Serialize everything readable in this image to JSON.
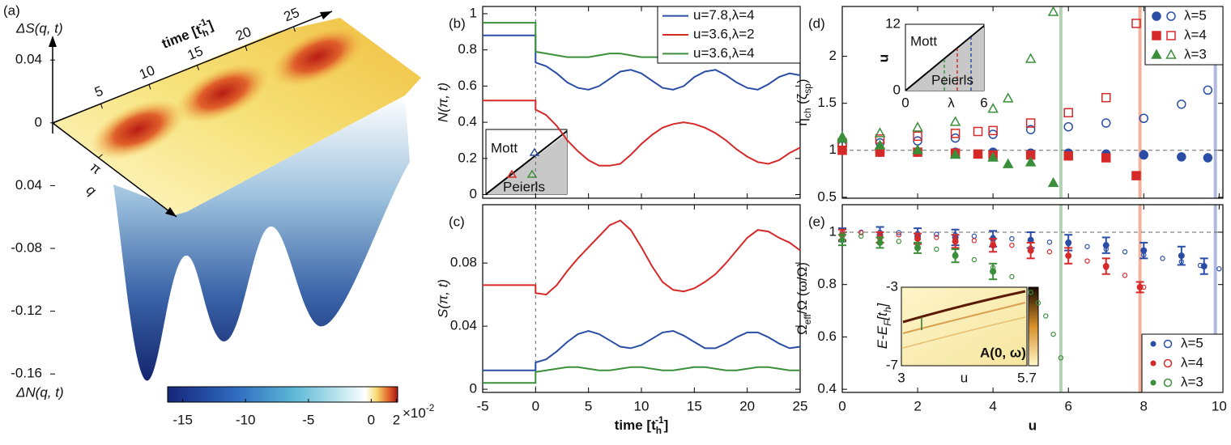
{
  "chart_data": [
    {
      "type": "surface",
      "panel": "(a)",
      "zlabel_top": "ΔS(q, t)",
      "zlabel_bottom": "ΔN(q, t)",
      "xlabel": [
        "time [t",
        "h",
        "-1",
        "]"
      ],
      "ylabel": "q",
      "xlim": [
        0,
        29
      ],
      "xticks": [
        5,
        10,
        15,
        20,
        25
      ],
      "ylim": [
        0,
        8.5
      ],
      "yticks": [
        {
          "value": 3.1416,
          "label": "π"
        }
      ],
      "zlim": [
        -0.18,
        0.07
      ],
      "zticks": [
        0.04,
        0,
        {
          "value": -0.04,
          "label": "0.04"
        },
        -0.08,
        -0.12,
        -0.16
      ],
      "colorbar": {
        "lim": [
          -16.2,
          2.1
        ],
        "ticks": [
          -15,
          -10,
          -5,
          0,
          2
        ],
        "scale": [
          "×10",
          "-2"
        ]
      }
    },
    {
      "type": "line",
      "panel": "(b)",
      "ylabel": "N(π, t)",
      "x": [
        -5,
        -4,
        -3,
        -2,
        -1,
        0,
        0,
        1,
        2,
        3,
        4,
        5,
        6,
        7,
        8,
        9,
        10,
        11,
        12,
        13,
        14,
        15,
        16,
        17,
        18,
        19,
        20,
        21,
        22,
        23,
        24,
        25
      ],
      "series": [
        {
          "name": "u=7.8,λ=4",
          "color": "#2a4ea6",
          "values": [
            0.88,
            0.88,
            0.88,
            0.88,
            0.88,
            0.88,
            0.73,
            0.71,
            0.67,
            0.62,
            0.59,
            0.58,
            0.6,
            0.64,
            0.68,
            0.69,
            0.67,
            0.63,
            0.59,
            0.58,
            0.6,
            0.65,
            0.68,
            0.69,
            0.66,
            0.62,
            0.59,
            0.58,
            0.61,
            0.65,
            0.67,
            0.66
          ]
        },
        {
          "name": "u=3.6,λ=2",
          "color": "#d62a2a",
          "values": [
            0.52,
            0.52,
            0.52,
            0.52,
            0.52,
            0.52,
            0.47,
            0.44,
            0.38,
            0.3,
            0.24,
            0.19,
            0.16,
            0.16,
            0.17,
            0.22,
            0.28,
            0.33,
            0.37,
            0.39,
            0.4,
            0.39,
            0.37,
            0.34,
            0.3,
            0.25,
            0.21,
            0.18,
            0.17,
            0.19,
            0.23,
            0.26
          ]
        },
        {
          "name": "u=3.6,λ=4",
          "color": "#3b8f3b",
          "values": [
            0.95,
            0.95,
            0.95,
            0.95,
            0.95,
            0.95,
            0.79,
            0.78,
            0.77,
            0.76,
            0.76,
            0.76,
            0.77,
            0.78,
            0.78,
            0.77,
            0.76,
            0.76,
            0.76,
            0.77,
            0.78,
            0.78,
            0.77,
            0.76,
            0.76,
            0.76,
            0.77,
            0.78,
            0.78,
            0.77,
            0.76,
            0.76
          ]
        }
      ],
      "xlim": [
        -5,
        25
      ],
      "ylim": [
        -0.02,
        1.04
      ],
      "yticks": [
        0,
        0.2,
        0.4,
        0.6,
        0.8,
        1
      ],
      "vline": 0,
      "legend": "upper right",
      "inset": {
        "labels": [
          "Mott",
          "Peierls"
        ]
      }
    },
    {
      "type": "line",
      "panel": "(c)",
      "ylabel": "S(π, t)",
      "xlabel": [
        "time [t",
        "h",
        "-1",
        "]"
      ],
      "x": [
        -5,
        -4,
        -3,
        -2,
        -1,
        0,
        0,
        1,
        2,
        3,
        4,
        5,
        6,
        7,
        8,
        9,
        10,
        11,
        12,
        13,
        14,
        15,
        16,
        17,
        18,
        19,
        20,
        21,
        22,
        23,
        24,
        25
      ],
      "series": [
        {
          "name": "u=7.8,λ=4",
          "color": "#2a4ea6",
          "values": [
            0.012,
            0.012,
            0.012,
            0.012,
            0.012,
            0.012,
            0.017,
            0.019,
            0.024,
            0.03,
            0.035,
            0.037,
            0.035,
            0.031,
            0.027,
            0.026,
            0.028,
            0.032,
            0.036,
            0.037,
            0.034,
            0.03,
            0.026,
            0.026,
            0.029,
            0.033,
            0.036,
            0.036,
            0.033,
            0.029,
            0.026,
            0.027
          ]
        },
        {
          "name": "u=3.6,λ=2",
          "color": "#d62a2a",
          "values": [
            0.066,
            0.066,
            0.066,
            0.066,
            0.066,
            0.066,
            0.061,
            0.06,
            0.066,
            0.075,
            0.083,
            0.09,
            0.097,
            0.104,
            0.107,
            0.101,
            0.09,
            0.078,
            0.068,
            0.063,
            0.062,
            0.064,
            0.068,
            0.073,
            0.08,
            0.088,
            0.096,
            0.101,
            0.1,
            0.096,
            0.093,
            0.088
          ]
        },
        {
          "name": "u=3.6,λ=4",
          "color": "#3b8f3b",
          "values": [
            0.004,
            0.004,
            0.004,
            0.004,
            0.004,
            0.004,
            0.011,
            0.012,
            0.013,
            0.014,
            0.014,
            0.013,
            0.012,
            0.012,
            0.013,
            0.014,
            0.014,
            0.013,
            0.012,
            0.012,
            0.013,
            0.014,
            0.014,
            0.013,
            0.012,
            0.012,
            0.013,
            0.014,
            0.014,
            0.013,
            0.012,
            0.012
          ]
        }
      ],
      "xlim": [
        -5,
        25
      ],
      "xticks": [
        -5,
        0,
        5,
        10,
        15,
        20,
        25
      ],
      "ylim": [
        -0.002,
        0.117
      ],
      "yticks": [
        0,
        0.04,
        0.08
      ],
      "vline": 0
    },
    {
      "type": "scatter",
      "panel": "(d)",
      "ylabel": [
        "η",
        "ch",
        " (ζ",
        "sp",
        ")"
      ],
      "series": [
        {
          "name": "λ=5",
          "color": "#2a4ea6",
          "marker": "circle",
          "x": [
            0,
            1,
            2,
            3,
            4,
            5,
            6,
            7,
            8,
            9,
            9.7
          ],
          "values": [
            1.0,
            0.98,
            0.98,
            0.98,
            0.98,
            0.97,
            0.97,
            0.96,
            0.95,
            0.93,
            0.92
          ],
          "values_open": [
            1.05,
            1.08,
            1.1,
            1.13,
            1.17,
            1.22,
            1.25,
            1.29,
            1.34,
            1.49,
            1.64
          ]
        },
        {
          "name": "λ=4",
          "color": "#d62a2a",
          "marker": "square",
          "x": [
            0,
            1,
            2,
            3,
            3.6,
            4,
            5,
            6,
            7,
            7.8
          ],
          "values": [
            1.0,
            0.98,
            0.98,
            0.97,
            0.96,
            0.95,
            0.95,
            0.94,
            0.92,
            0.73
          ],
          "values_open": [
            1.08,
            1.12,
            1.15,
            1.18,
            1.2,
            1.21,
            1.29,
            1.4,
            1.56,
            2.35
          ]
        },
        {
          "name": "λ=3",
          "color": "#3b8f3b",
          "marker": "triangle",
          "x": [
            0,
            1,
            2,
            3,
            4,
            4.4,
            5,
            5.6
          ],
          "values": [
            1.12,
            1.05,
            1.0,
            0.95,
            0.92,
            0.85,
            0.87,
            0.65
          ],
          "values_open": [
            1.14,
            1.18,
            1.24,
            1.3,
            1.44,
            1.55,
            1.97,
            2.47
          ]
        }
      ],
      "xlim": [
        0,
        10.1
      ],
      "ylim": [
        0.49,
        2.53
      ],
      "yticks": [
        0.5,
        1,
        1.5,
        2
      ],
      "hline": 1,
      "vlines": [
        {
          "value": 5.8,
          "color": "#a6cba6"
        },
        {
          "value": 7.9,
          "color": "#f2a58a"
        },
        {
          "value": 9.9,
          "color": "#a3aedc"
        }
      ],
      "legend": "upper right",
      "inset": {
        "xlim": [
          0,
          6
        ],
        "xticks": [
          0,
          6
        ],
        "ylim": [
          0,
          12
        ],
        "yticks": [
          0,
          12
        ],
        "xlabel": "λ",
        "ylabel": "u",
        "labels": [
          "Mott",
          "Peierls"
        ]
      }
    },
    {
      "type": "errorbar",
      "panel": "(e)",
      "ylabel": [
        "Ω",
        "eff",
        "/Ω  (ω/Ω)"
      ],
      "xlabel": "u",
      "series": [
        {
          "name": "λ=5",
          "color": "#2a4ea6",
          "x": [
            0,
            1,
            2,
            3,
            4,
            5,
            6,
            7,
            8,
            9,
            9.6
          ],
          "values": [
            0.99,
            0.99,
            0.985,
            0.98,
            0.975,
            0.97,
            0.96,
            0.95,
            0.93,
            0.91,
            0.87
          ],
          "errors": [
            0.025,
            0.03,
            0.03,
            0.03,
            0.03,
            0.03,
            0.03,
            0.03,
            0.03,
            0.035,
            0.03
          ],
          "fit_x": [
            0,
            0.5,
            1,
            1.5,
            2,
            2.5,
            3,
            3.5,
            4,
            4.5,
            5,
            5.5,
            6,
            6.5,
            7,
            7.5,
            8,
            8.5,
            9,
            9.5,
            10
          ],
          "fit": [
            1.0,
            1.0,
            1.0,
            0.998,
            0.995,
            0.992,
            0.99,
            0.985,
            0.98,
            0.975,
            0.97,
            0.962,
            0.955,
            0.945,
            0.935,
            0.925,
            0.913,
            0.9,
            0.887,
            0.873,
            0.86
          ]
        },
        {
          "name": "λ=4",
          "color": "#d62a2a",
          "x": [
            0,
            1,
            2,
            3,
            4,
            5,
            6,
            7,
            7.9
          ],
          "values": [
            0.99,
            0.98,
            0.975,
            0.965,
            0.95,
            0.93,
            0.91,
            0.87,
            0.79
          ],
          "errors": [
            0.02,
            0.02,
            0.02,
            0.025,
            0.025,
            0.03,
            0.03,
            0.03,
            0.02
          ],
          "fit_x": [
            0,
            0.5,
            1,
            1.5,
            2,
            2.5,
            3,
            3.5,
            4,
            4.5,
            5,
            5.5,
            6,
            6.5,
            7,
            7.5,
            8
          ],
          "fit": [
            1.0,
            0.998,
            0.995,
            0.99,
            0.985,
            0.98,
            0.975,
            0.968,
            0.96,
            0.95,
            0.94,
            0.925,
            0.91,
            0.89,
            0.865,
            0.835,
            0.79
          ]
        },
        {
          "name": "λ=3",
          "color": "#3b8f3b",
          "x": [
            0,
            1,
            2,
            3,
            4
          ],
          "values": [
            0.97,
            0.96,
            0.94,
            0.91,
            0.85
          ],
          "errors": [
            0.02,
            0.02,
            0.02,
            0.025,
            0.03
          ],
          "fit_x": [
            0,
            0.5,
            1,
            1.5,
            2,
            2.5,
            3,
            3.5,
            4,
            4.5,
            5,
            5.2,
            5.4,
            5.6,
            5.8
          ],
          "fit": [
            0.99,
            0.985,
            0.975,
            0.965,
            0.95,
            0.935,
            0.915,
            0.895,
            0.865,
            0.83,
            0.77,
            0.73,
            0.68,
            0.61,
            0.52
          ]
        }
      ],
      "xlim": [
        0,
        10.1
      ],
      "xticks": [
        0,
        2,
        4,
        6,
        8,
        10
      ],
      "ylim": [
        0.388,
        1.105
      ],
      "yticks": [
        0.4,
        0.6,
        0.8,
        1
      ],
      "hline": 1,
      "vlines": [
        {
          "value": 5.8,
          "color": "#a6cba6"
        },
        {
          "value": 7.9,
          "color": "#f2a58a"
        },
        {
          "value": 9.9,
          "color": "#a3aedc"
        }
      ],
      "legend": "lower right",
      "inset": {
        "xlim": [
          3,
          5.7
        ],
        "xticks": [
          3,
          5.7
        ],
        "ylim": [
          -7,
          -3
        ],
        "yticks": [
          -7,
          -3
        ],
        "xlabel": "u",
        "ylabel": [
          "E-E",
          "F",
          "[t",
          "h",
          "]"
        ],
        "colorbar_label": "A(0, ω)"
      }
    }
  ]
}
